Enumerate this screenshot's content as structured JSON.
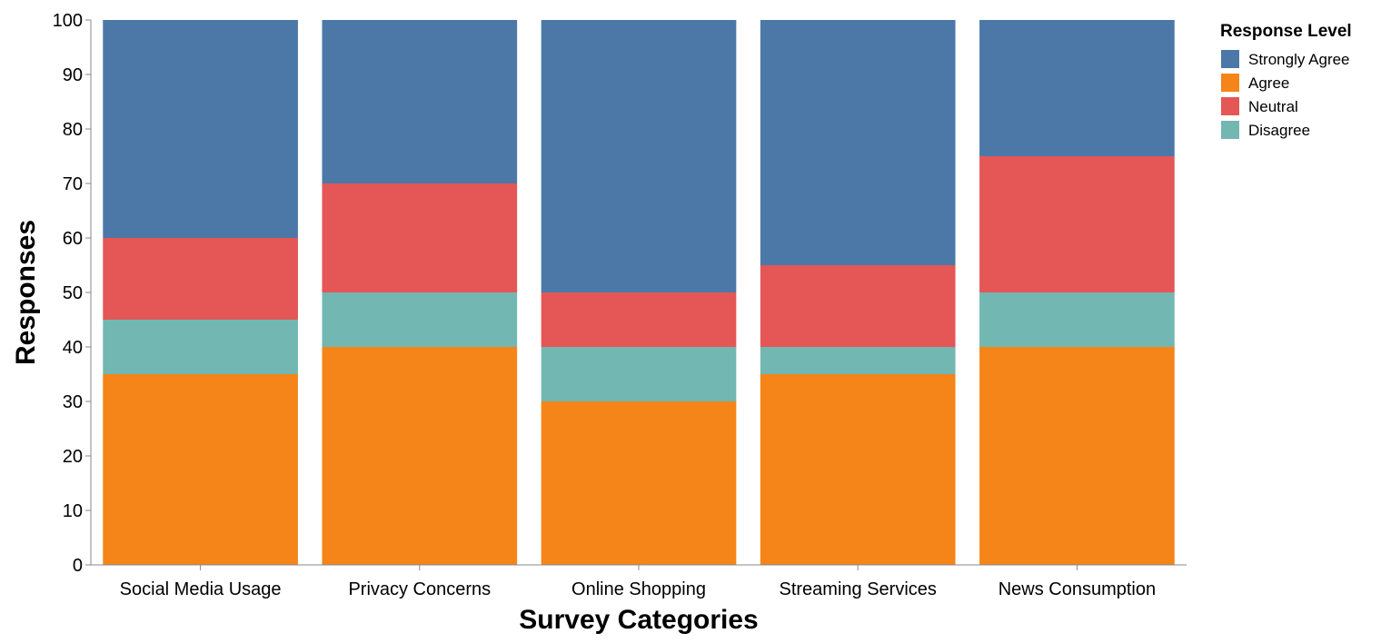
{
  "chart_data": {
    "type": "bar",
    "stacked": true,
    "categories": [
      "Social Media Usage",
      "Privacy Concerns",
      "Online Shopping",
      "Streaming Services",
      "News Consumption"
    ],
    "series": [
      {
        "name": "Agree",
        "color": "#f58518",
        "values": [
          35,
          40,
          30,
          35,
          40
        ]
      },
      {
        "name": "Disagree",
        "color": "#72b7b2",
        "values": [
          10,
          10,
          10,
          5,
          10
        ]
      },
      {
        "name": "Neutral",
        "color": "#e45756",
        "values": [
          15,
          20,
          10,
          15,
          25
        ]
      },
      {
        "name": "Strongly Agree",
        "color": "#4c78a8",
        "values": [
          40,
          30,
          50,
          45,
          25
        ]
      }
    ],
    "xlabel": "Survey Categories",
    "ylabel": "Responses",
    "ylim": [
      0,
      100
    ],
    "yticks": [
      0,
      10,
      20,
      30,
      40,
      50,
      60,
      70,
      80,
      90,
      100
    ],
    "grid": false,
    "legend": {
      "title": "Response Level",
      "position": "top-right",
      "order": [
        "Strongly Agree",
        "Agree",
        "Neutral",
        "Disagree"
      ]
    }
  }
}
